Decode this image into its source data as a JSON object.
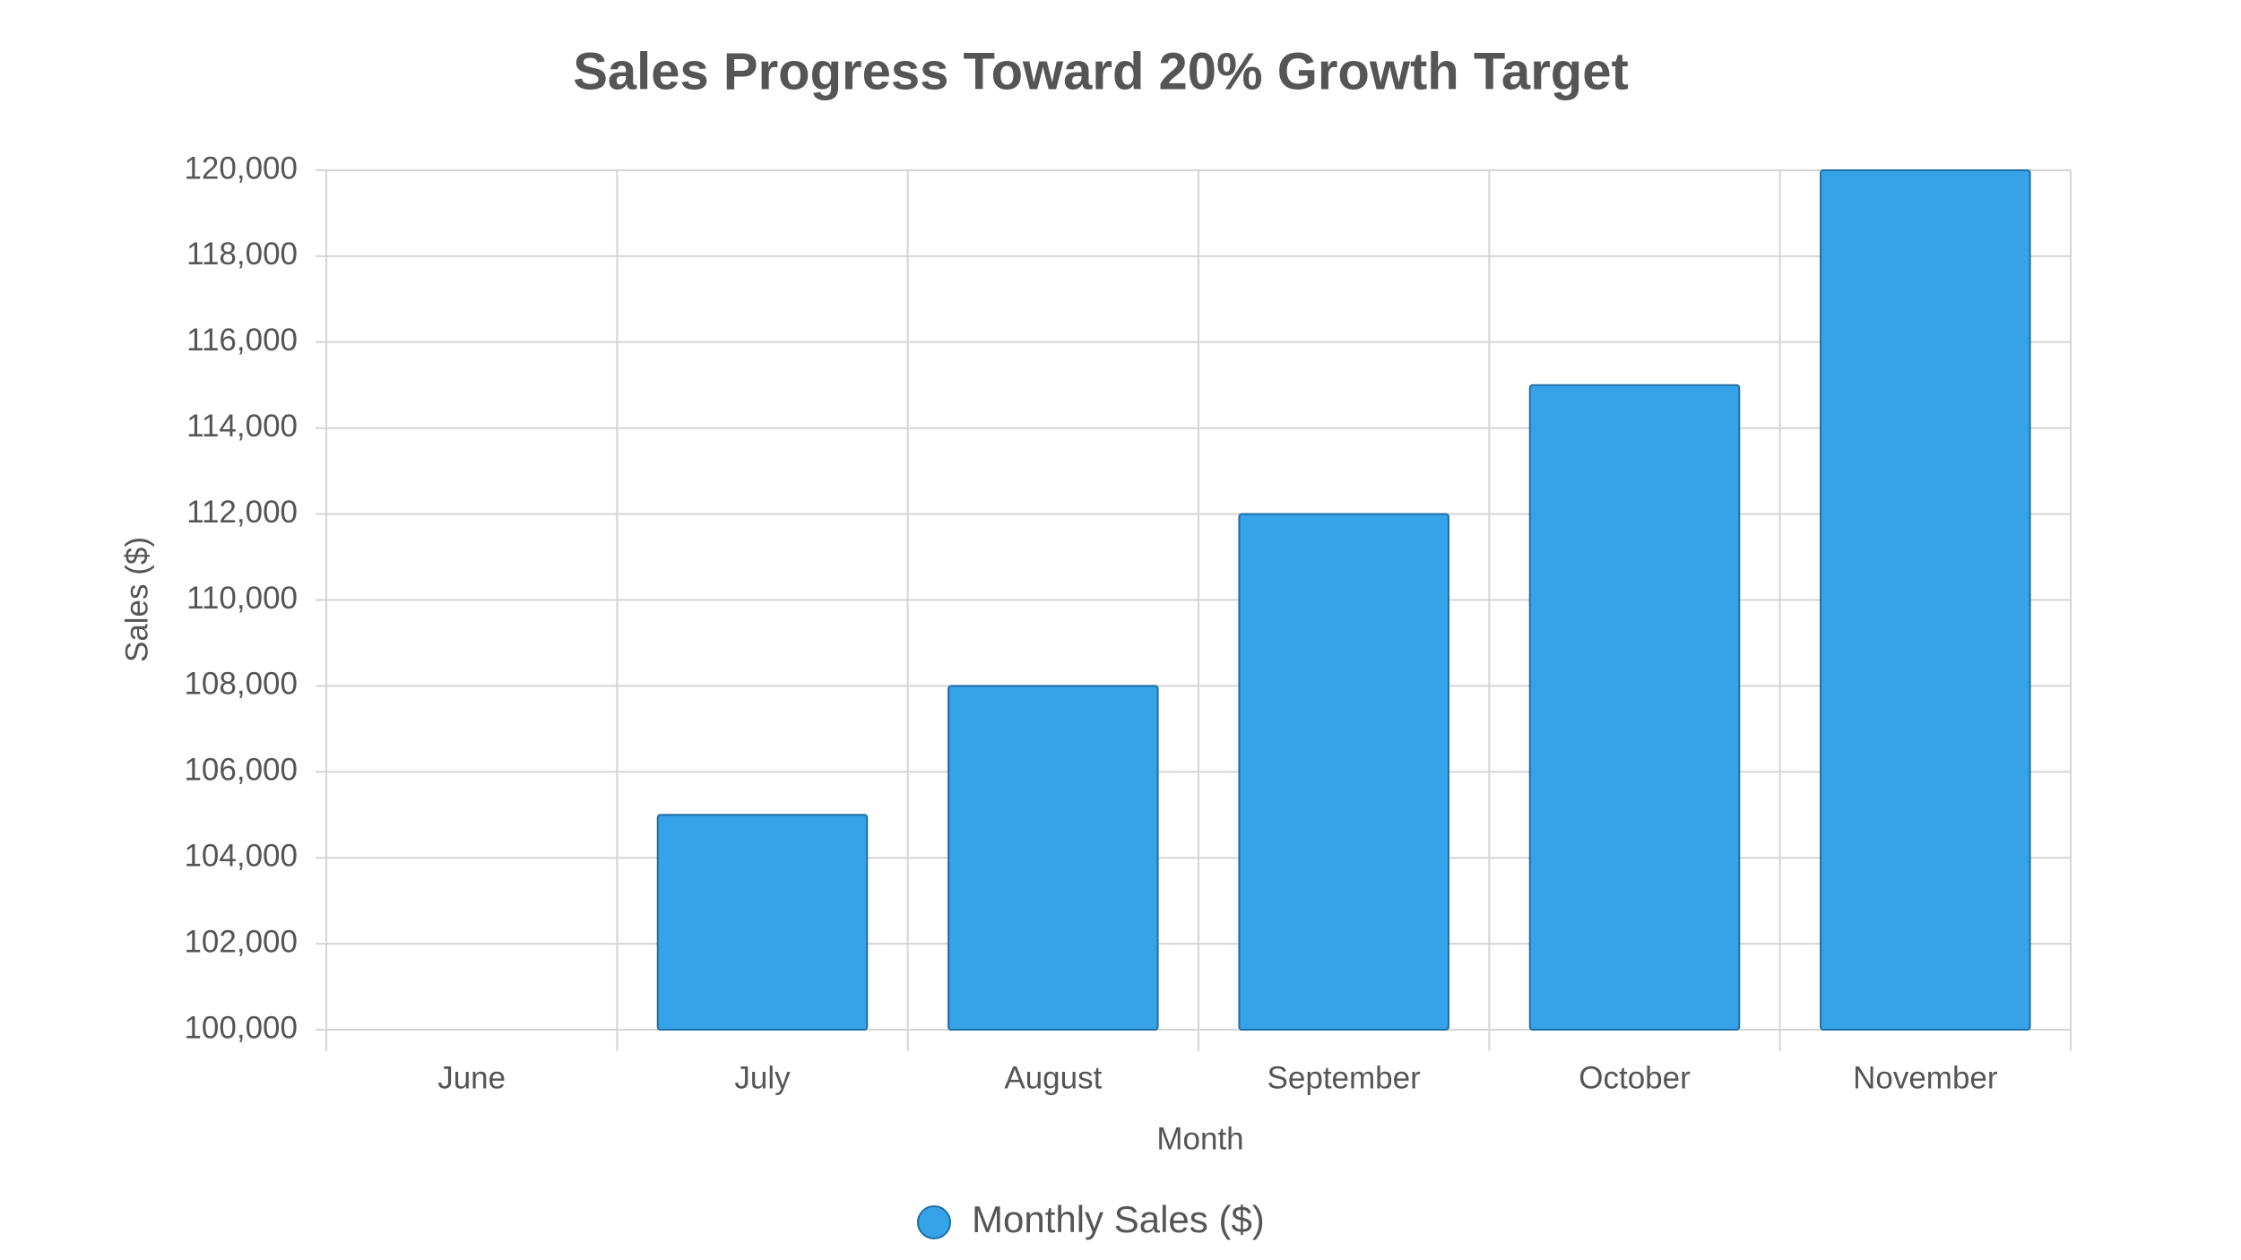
{
  "chart_data": {
    "type": "bar",
    "title": "Sales Progress Toward 20% Growth Target",
    "x_label": "Month",
    "y_label": "Sales ($)",
    "categories": [
      "June",
      "July",
      "August",
      "September",
      "October",
      "November"
    ],
    "series": [
      {
        "name": "Monthly Sales ($)",
        "color": "#36a2e8",
        "values": [
          100000,
          105000,
          108000,
          112000,
          115000,
          120000
        ]
      }
    ],
    "ylim": [
      100000,
      120000
    ],
    "yticks": [
      {
        "value": 100000,
        "label": "100,000"
      },
      {
        "value": 102000,
        "label": "102,000"
      },
      {
        "value": 104000,
        "label": "104,000"
      },
      {
        "value": 106000,
        "label": "106,000"
      },
      {
        "value": 108000,
        "label": "108,000"
      },
      {
        "value": 110000,
        "label": "110,000"
      },
      {
        "value": 112000,
        "label": "112,000"
      },
      {
        "value": 114000,
        "label": "114,000"
      },
      {
        "value": 116000,
        "label": "116,000"
      },
      {
        "value": 118000,
        "label": "118,000"
      },
      {
        "value": 120000,
        "label": "120,000"
      }
    ],
    "grid": true,
    "legend": "bottom"
  }
}
